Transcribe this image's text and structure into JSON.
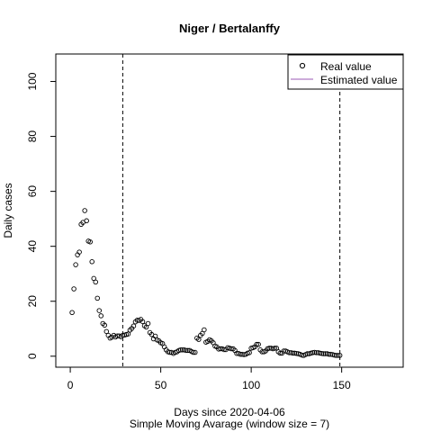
{
  "chart_data": {
    "type": "scatter",
    "title": "Niger / Bertalanffy",
    "xlabel": "Days since 2020-04-06",
    "subtitle": "Simple Moving Avarage (window size = 7)",
    "ylabel": "Daily cases",
    "xlim": [
      -8,
      184
    ],
    "ylim": [
      -4,
      110
    ],
    "x_ticks": [
      "0",
      "50",
      "100",
      "150"
    ],
    "y_ticks": [
      "0",
      "20",
      "40",
      "60",
      "80",
      "100"
    ],
    "vlines": [
      29,
      149
    ],
    "grid": false,
    "legend": {
      "position": "top-right",
      "entries": [
        "Real value",
        "Estimated value"
      ]
    },
    "series": [
      {
        "name": "Real value",
        "marker": "open-circle",
        "color": "#000000",
        "x": [
          1,
          2,
          3,
          4,
          5,
          6,
          7,
          8,
          9,
          10,
          11,
          12,
          13,
          14,
          15,
          16,
          17,
          18,
          19,
          20,
          21,
          22,
          23,
          24,
          25,
          26,
          27,
          28,
          29,
          30,
          31,
          32,
          33,
          34,
          35,
          36,
          37,
          38,
          39,
          40,
          41,
          42,
          43,
          44,
          45,
          46,
          47,
          48,
          49,
          50,
          51,
          52,
          53,
          54,
          55,
          56,
          57,
          58,
          59,
          60,
          61,
          62,
          63,
          64,
          65,
          66,
          67,
          68,
          69,
          70,
          71,
          72,
          73,
          74,
          75,
          76,
          77,
          78,
          79,
          80,
          81,
          82,
          83,
          84,
          85,
          86,
          87,
          88,
          89,
          90,
          91,
          92,
          93,
          94,
          95,
          96,
          97,
          98,
          99,
          100,
          101,
          102,
          103,
          104,
          105,
          106,
          107,
          108,
          109,
          110,
          111,
          112,
          113,
          114,
          115,
          116,
          117,
          118,
          119,
          120,
          121,
          122,
          123,
          124,
          125,
          126,
          127,
          128,
          129,
          130,
          131,
          132,
          133,
          134,
          135,
          136,
          137,
          138,
          139,
          140,
          141,
          142,
          143,
          144,
          145,
          146,
          147,
          148,
          149
        ],
        "y": [
          15.9,
          24.5,
          33.3,
          36.9,
          37.9,
          48,
          48.7,
          53,
          49.3,
          41.9,
          41.6,
          34.4,
          28.3,
          27,
          21.1,
          16.6,
          14.7,
          11.9,
          11.3,
          9,
          7.6,
          6.6,
          6.9,
          7.6,
          7,
          7.4,
          7.4,
          7.1,
          7.6,
          7.7,
          7.9,
          8.1,
          9.5,
          10.1,
          11,
          12.5,
          13.1,
          13,
          13.4,
          12.6,
          11.1,
          10.6,
          11.9,
          8.6,
          7.9,
          6.3,
          7.3,
          5.9,
          5.6,
          4.9,
          4.6,
          3.4,
          2.3,
          1.6,
          1.4,
          1.4,
          1,
          1.4,
          1.6,
          2.1,
          2.3,
          2.3,
          2.3,
          2.1,
          2.1,
          2.1,
          1.7,
          1.4,
          1.4,
          6.6,
          6.1,
          7.6,
          8.3,
          9.6,
          5.1,
          5.4,
          6,
          5.6,
          4.9,
          3.7,
          3.4,
          2.6,
          2.7,
          2.7,
          2.4,
          2.4,
          3.1,
          2.9,
          2.7,
          2.7,
          2.1,
          1,
          1,
          0.7,
          0.7,
          0.6,
          0.7,
          1.1,
          1.3,
          2.9,
          3.1,
          3.4,
          4.3,
          4.3,
          2.3,
          1.6,
          1.6,
          1.9,
          2.7,
          2.9,
          2.9,
          2.7,
          2.9,
          2.9,
          1.6,
          1.1,
          1.1,
          1.9,
          1.9,
          1.6,
          1.3,
          1.3,
          1.1,
          1.1,
          1,
          0.9,
          0.7,
          0.4,
          0.3,
          0.6,
          0.9,
          0.9,
          1.1,
          1.3,
          1.4,
          1.3,
          1.3,
          1.1,
          1,
          0.9,
          0.9,
          0.9,
          0.7,
          0.7,
          0.6,
          0.4,
          0.3,
          0.3,
          0.3
        ]
      },
      {
        "name": "Estimated value",
        "marker": "line",
        "color": "#9b59b6",
        "x": [],
        "y": []
      }
    ]
  }
}
